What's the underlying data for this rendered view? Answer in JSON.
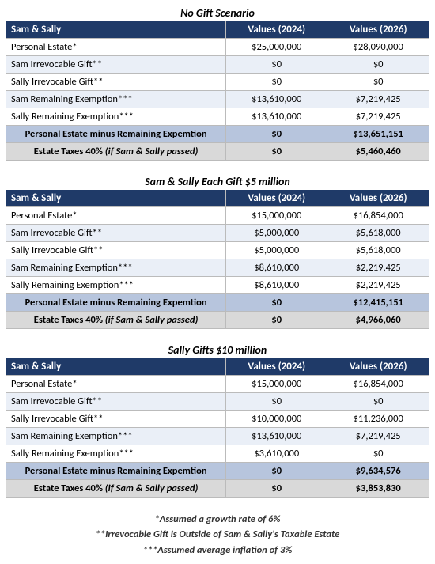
{
  "colors": {
    "header_bg": "#1f3a68",
    "header_fg": "#ffffff",
    "row_even": "#eaeff7",
    "row_odd": "#ffffff",
    "summary_bg": "#b7c5dd",
    "tax_bg": "#d9d9d9",
    "border": "#bbbbbb"
  },
  "columns": {
    "c0": "Sam & Sally",
    "c1": "Values (2024)",
    "c2": "Values (2026)"
  },
  "row_labels": {
    "personal_estate": "Personal Estate*",
    "sam_gift": "Sam Irrevocable Gift**",
    "sally_gift": "Sally Irrevocable Gift**",
    "sam_exemption": "Sam Remaining Exemption***",
    "sally_exemption": "Sally Remaining Exemption***",
    "summary": "Personal Estate minus Remaining Expemtion",
    "tax_prefix": "Estate Taxes 40% ",
    "tax_suffix": "(if Sam & Sally passed)"
  },
  "scenarios": [
    {
      "title": "No Gift Scenario",
      "rows": {
        "personal_estate": {
          "v2024": "$25,000,000",
          "v2026": "$28,090,000"
        },
        "sam_gift": {
          "v2024": "$0",
          "v2026": "$0"
        },
        "sally_gift": {
          "v2024": "$0",
          "v2026": "$0"
        },
        "sam_exemption": {
          "v2024": "$13,610,000",
          "v2026": "$7,219,425"
        },
        "sally_exemption": {
          "v2024": "$13,610,000",
          "v2026": "$7,219,425"
        },
        "summary": {
          "v2024": "$0",
          "v2026": "$13,651,151"
        },
        "tax": {
          "v2024": "$0",
          "v2026": "$5,460,460"
        }
      }
    },
    {
      "title": "Sam & Sally Each Gift $5 million",
      "rows": {
        "personal_estate": {
          "v2024": "$15,000,000",
          "v2026": "$16,854,000"
        },
        "sam_gift": {
          "v2024": "$5,000,000",
          "v2026": "$5,618,000"
        },
        "sally_gift": {
          "v2024": "$5,000,000",
          "v2026": "$5,618,000"
        },
        "sam_exemption": {
          "v2024": "$8,610,000",
          "v2026": "$2,219,425"
        },
        "sally_exemption": {
          "v2024": "$8,610,000",
          "v2026": "$2,219,425"
        },
        "summary": {
          "v2024": "$0",
          "v2026": "$12,415,151"
        },
        "tax": {
          "v2024": "$0",
          "v2026": "$4,966,060"
        }
      }
    },
    {
      "title": "Sally Gifts $10 million",
      "rows": {
        "personal_estate": {
          "v2024": "$15,000,000",
          "v2026": "$16,854,000"
        },
        "sam_gift": {
          "v2024": "$0",
          "v2026": "$0"
        },
        "sally_gift": {
          "v2024": "$10,000,000",
          "v2026": "$11,236,000"
        },
        "sam_exemption": {
          "v2024": "$13,610,000",
          "v2026": "$7,219,425"
        },
        "sally_exemption": {
          "v2024": "$3,610,000",
          "v2026": "$0"
        },
        "summary": {
          "v2024": "$0",
          "v2026": "$9,634,576"
        },
        "tax": {
          "v2024": "$0",
          "v2026": "$3,853,830"
        }
      }
    }
  ],
  "footnotes": {
    "f1": "*Assumed a growth rate of 6%",
    "f2": "**Irrevocable Gift is Outside of Sam & Sally's Taxable Estate",
    "f3": "***Assumed average inflation of 3%"
  }
}
